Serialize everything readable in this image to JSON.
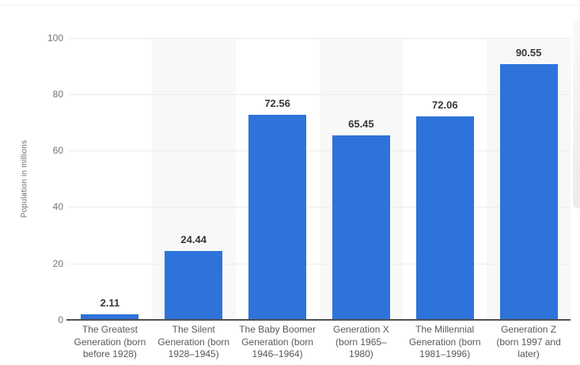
{
  "page": {
    "background": "#ffffff"
  },
  "y_axis": {
    "title": "Population in millions",
    "tick_labels": [
      "0",
      "20",
      "40",
      "60",
      "80",
      "100"
    ]
  },
  "chart_data": {
    "type": "bar",
    "title": "",
    "xlabel": "",
    "ylabel": "Population in millions",
    "categories": [
      "The Greatest Generation (born before 1928)",
      "The Silent Generation (born 1928–1945)",
      "The Baby Boomer Generation (born 1946–1964)",
      "Generation X (born 1965–1980)",
      "The Millennial Generation (born 1981–1996)",
      "Generation Z (born 1997 and later)"
    ],
    "category_labels_multiline": [
      "The Greatest\nGeneration (born\nbefore 1928)",
      "The Silent\nGeneration (born\n1928–1945)",
      "The Baby Boomer\nGeneration (born\n1946–1964)",
      "Generation X\n(born 1965–\n1980)",
      "The Millennial\nGeneration (born\n1981–1996)",
      "Generation Z\n(born 1997 and\nlater)"
    ],
    "values": [
      2.11,
      24.44,
      72.56,
      65.45,
      72.06,
      90.55
    ],
    "value_labels": [
      "2.11",
      "24.44",
      "72.56",
      "65.45",
      "72.06",
      "90.55"
    ],
    "ylim": [
      0,
      100
    ],
    "yticks": [
      0,
      20,
      40,
      60,
      80,
      100
    ],
    "grid": true,
    "legend_position": "none",
    "plot_band_alternating": true,
    "colors": {
      "bar": "#2d73d9",
      "band": "#f8f8f8",
      "gridline": "#ececec",
      "axis_line": "#515151",
      "value_label": "#383838",
      "tick_label": "#757575",
      "category_label": "#595959",
      "axis_title": "#6f6f6f",
      "top_border": "#efefef"
    }
  }
}
